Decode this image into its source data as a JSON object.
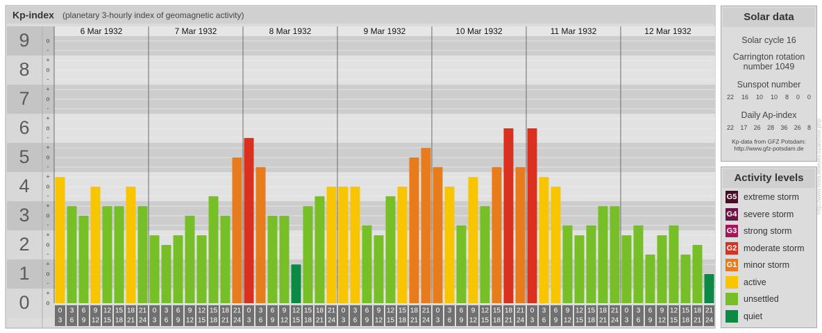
{
  "chart_data": {
    "type": "bar",
    "title": "Kp-index",
    "subtitle": "(planetary 3-hourly index of geomagnetic activity)",
    "categories": [
      "6 Mar 1932",
      "7 Mar 1932",
      "8 Mar 1932",
      "9 Mar 1932",
      "10 Mar 1932",
      "11 Mar 1932",
      "12 Mar 1932"
    ],
    "hour_labels": [
      [
        "0",
        "3"
      ],
      [
        "3",
        "6"
      ],
      [
        "6",
        "9"
      ],
      [
        "9",
        "12"
      ],
      [
        "12",
        "15"
      ],
      [
        "15",
        "18"
      ],
      [
        "18",
        "21"
      ],
      [
        "21",
        "24"
      ]
    ],
    "values": [
      [
        4.33,
        3.33,
        3,
        4,
        3.33,
        3.33,
        4,
        3.33
      ],
      [
        2.33,
        2,
        2.33,
        3,
        2.33,
        3.67,
        3,
        5
      ],
      [
        5.67,
        4.67,
        3,
        3,
        1.33,
        3.33,
        3.67,
        4
      ],
      [
        4,
        4,
        2.67,
        2.33,
        3.67,
        4,
        5,
        5.33
      ],
      [
        4.67,
        4,
        2.67,
        4.33,
        3.33,
        4.67,
        6,
        4.67
      ],
      [
        6,
        4.33,
        4,
        2.67,
        2.33,
        2.67,
        3.33,
        3.33
      ],
      [
        2.33,
        2.67,
        1.67,
        2.33,
        2.67,
        1.67,
        2,
        1
      ]
    ],
    "colors": [
      [
        "#f9c400",
        "#77bf26",
        "#77bf26",
        "#f9c400",
        "#77bf26",
        "#77bf26",
        "#f9c400",
        "#77bf26"
      ],
      [
        "#77bf26",
        "#77bf26",
        "#77bf26",
        "#77bf26",
        "#77bf26",
        "#77bf26",
        "#77bf26",
        "#e87b1a"
      ],
      [
        "#d9301f",
        "#e87b1a",
        "#77bf26",
        "#77bf26",
        "#0a8a45",
        "#77bf26",
        "#77bf26",
        "#f9c400"
      ],
      [
        "#f9c400",
        "#f9c400",
        "#77bf26",
        "#77bf26",
        "#77bf26",
        "#f9c400",
        "#e87b1a",
        "#e87b1a"
      ],
      [
        "#e87b1a",
        "#f9c400",
        "#77bf26",
        "#f9c400",
        "#77bf26",
        "#e87b1a",
        "#d9301f",
        "#e87b1a"
      ],
      [
        "#d9301f",
        "#f9c400",
        "#f9c400",
        "#77bf26",
        "#77bf26",
        "#77bf26",
        "#77bf26",
        "#77bf26"
      ],
      [
        "#77bf26",
        "#77bf26",
        "#77bf26",
        "#77bf26",
        "#77bf26",
        "#77bf26",
        "#77bf26",
        "#0a8a45"
      ]
    ],
    "ylim": [
      0,
      9.5
    ],
    "yticks": [
      0,
      1,
      2,
      3,
      4,
      5,
      6,
      7,
      8,
      9
    ],
    "minor_yticks": [
      {
        "value": 0,
        "label": "o"
      },
      {
        "value": 0.33,
        "label": "+"
      },
      {
        "value": 0.67,
        "label": "-"
      },
      {
        "value": 1,
        "label": "o"
      },
      {
        "value": 1.33,
        "label": "+"
      },
      {
        "value": 1.67,
        "label": "-"
      },
      {
        "value": 2,
        "label": "o"
      },
      {
        "value": 2.33,
        "label": "+"
      },
      {
        "value": 2.67,
        "label": "-"
      },
      {
        "value": 3,
        "label": "o"
      },
      {
        "value": 3.33,
        "label": "+"
      },
      {
        "value": 3.67,
        "label": "-"
      },
      {
        "value": 4,
        "label": "o"
      },
      {
        "value": 4.33,
        "label": "+"
      },
      {
        "value": 4.67,
        "label": "-"
      },
      {
        "value": 5,
        "label": "o"
      },
      {
        "value": 5.33,
        "label": "+"
      },
      {
        "value": 5.67,
        "label": "-"
      },
      {
        "value": 6,
        "label": "o"
      },
      {
        "value": 6.33,
        "label": "+"
      },
      {
        "value": 6.67,
        "label": "-"
      },
      {
        "value": 7,
        "label": "o"
      },
      {
        "value": 7.33,
        "label": "+"
      },
      {
        "value": 7.67,
        "label": "-"
      },
      {
        "value": 8,
        "label": "o"
      },
      {
        "value": 8.33,
        "label": "+"
      },
      {
        "value": 8.67,
        "label": "-"
      },
      {
        "value": 9,
        "label": "o"
      }
    ],
    "grid": true
  },
  "solar_data": {
    "title": "Solar data",
    "solar_cycle": "Solar cycle 16",
    "carrington": "Carrington rotation number 1049",
    "sunspot_title": "Sunspot number",
    "sunspot_numbers": [
      22,
      16,
      10,
      10,
      8,
      0,
      0
    ],
    "ap_title": "Daily Ap-index",
    "ap_index": [
      22,
      17,
      26,
      28,
      36,
      26,
      8
    ],
    "source": "Kp-data from GFZ Potsdam:",
    "source_url": "http://www.gfz-potsdam.de"
  },
  "activity_levels": {
    "title": "Activity levels",
    "items": [
      {
        "code": "G5",
        "label": "extreme storm",
        "color": "#4a0b26"
      },
      {
        "code": "G4",
        "label": "severe storm",
        "color": "#6e1245"
      },
      {
        "code": "G3",
        "label": "strong storm",
        "color": "#a3185a"
      },
      {
        "code": "G2",
        "label": "moderate storm",
        "color": "#d9301f"
      },
      {
        "code": "G1",
        "label": "minor storm",
        "color": "#e87b1a"
      },
      {
        "label": "active",
        "color": "#f9c400"
      },
      {
        "label": "unsettled",
        "color": "#77bf26"
      },
      {
        "label": "quiet",
        "color": "#0a8a45"
      }
    ]
  },
  "watermark": "http://www.tesis.lebedev.ru/archive.php"
}
